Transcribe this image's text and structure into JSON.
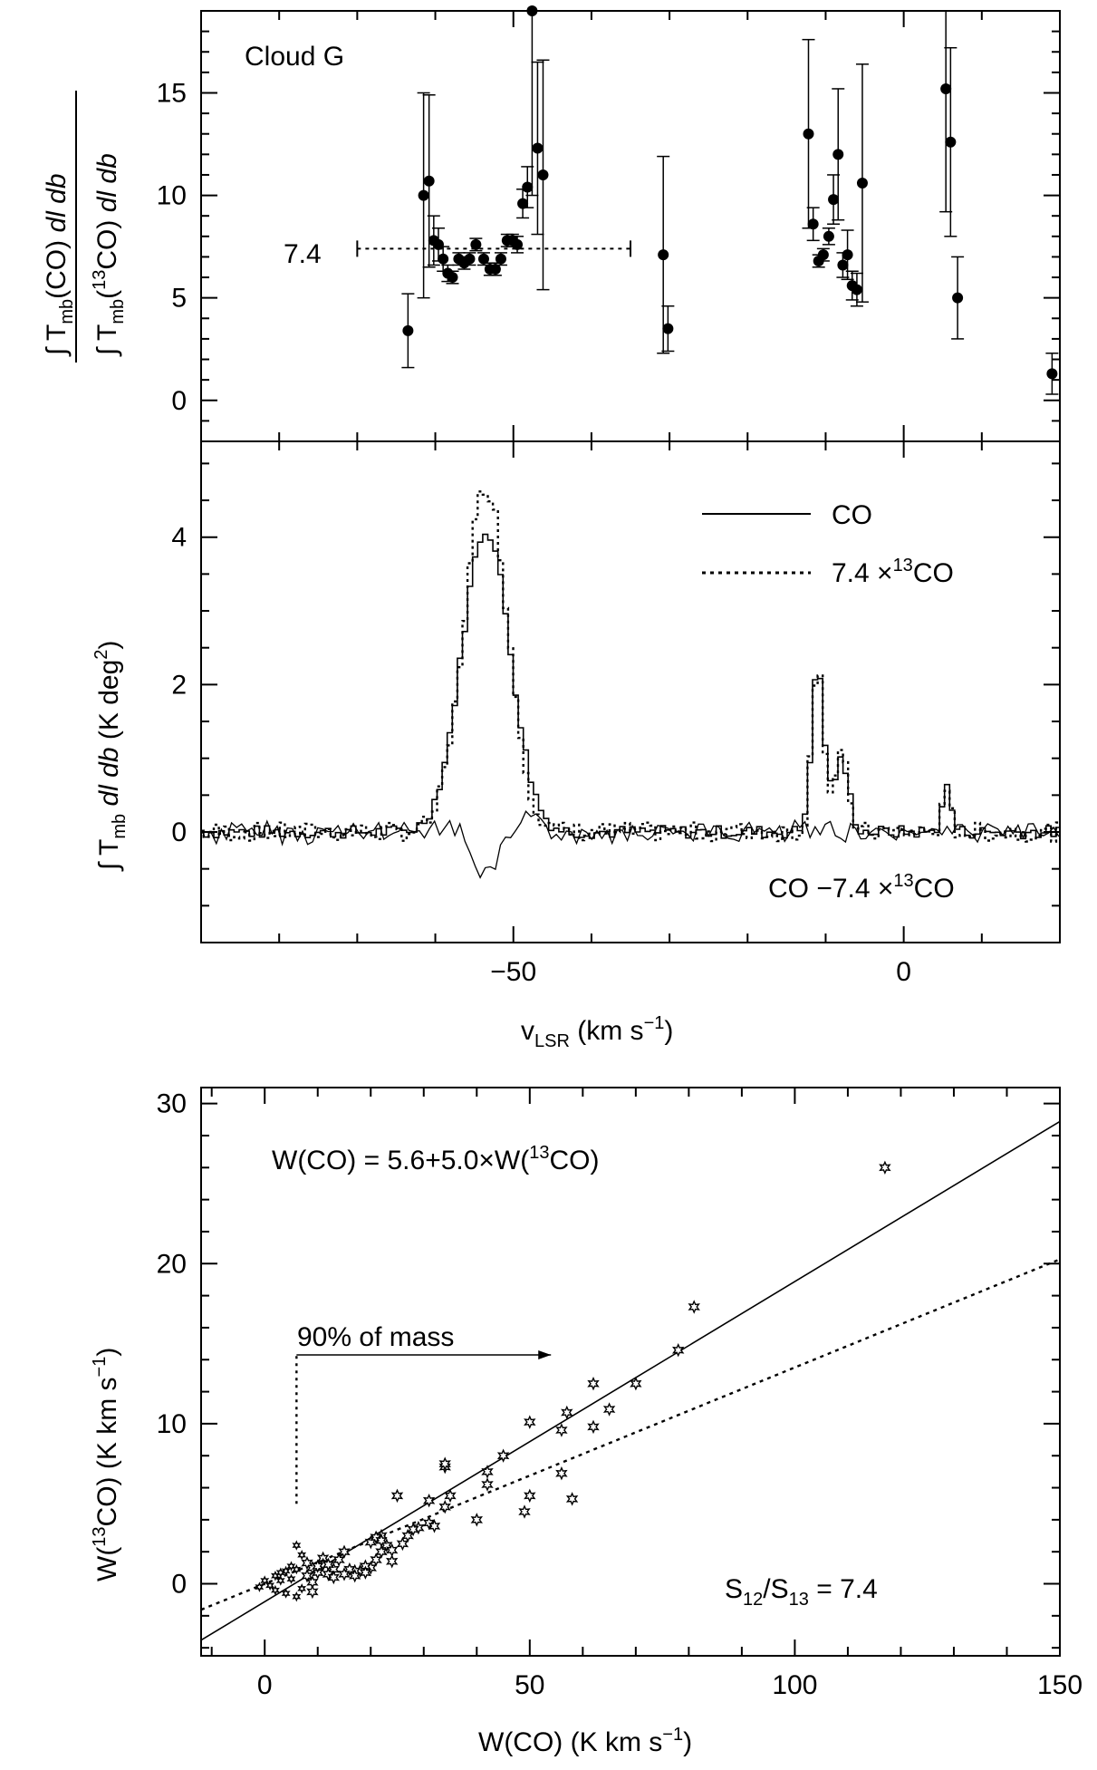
{
  "chart_data": [
    {
      "type": "scatter",
      "panel": "top",
      "title": "Cloud G",
      "xlabel": "",
      "ylabel": "∫ Tmb(CO) dl db / ∫ Tmb(13CO) dl db",
      "xlim": [
        -90,
        20
      ],
      "ylim": [
        -2,
        19
      ],
      "yticks": [
        0,
        5,
        10,
        15
      ],
      "mean_line": {
        "label": "7.4",
        "value": 7.4,
        "x_from": -70,
        "x_to": -35
      },
      "points": [
        {
          "x": -63.5,
          "y": 3.4,
          "err": 1.8
        },
        {
          "x": -61.5,
          "y": 10.0,
          "err": 5.0
        },
        {
          "x": -60.8,
          "y": 10.7,
          "err": 4.2
        },
        {
          "x": -60.2,
          "y": 7.8,
          "err": 1.2
        },
        {
          "x": -59.6,
          "y": 7.6,
          "err": 0.8
        },
        {
          "x": -59.0,
          "y": 6.9,
          "err": 0.6
        },
        {
          "x": -58.4,
          "y": 6.2,
          "err": 0.4
        },
        {
          "x": -57.8,
          "y": 6.0,
          "err": 0.3
        },
        {
          "x": -57.0,
          "y": 6.9,
          "err": 0.3
        },
        {
          "x": -56.3,
          "y": 6.7,
          "err": 0.3
        },
        {
          "x": -55.6,
          "y": 6.9,
          "err": 0.3
        },
        {
          "x": -54.8,
          "y": 7.6,
          "err": 0.3
        },
        {
          "x": -53.8,
          "y": 6.9,
          "err": 0.3
        },
        {
          "x": -53.0,
          "y": 6.4,
          "err": 0.3
        },
        {
          "x": -52.3,
          "y": 6.4,
          "err": 0.3
        },
        {
          "x": -51.6,
          "y": 6.9,
          "err": 0.3
        },
        {
          "x": -50.8,
          "y": 7.8,
          "err": 0.3
        },
        {
          "x": -50.1,
          "y": 7.8,
          "err": 0.3
        },
        {
          "x": -49.5,
          "y": 7.6,
          "err": 0.4
        },
        {
          "x": -48.8,
          "y": 9.6,
          "err": 0.7
        },
        {
          "x": -48.2,
          "y": 10.4,
          "err": 1.0
        },
        {
          "x": -47.6,
          "y": 19.0,
          "err": 9.0
        },
        {
          "x": -46.9,
          "y": 12.3,
          "err": 4.2
        },
        {
          "x": -46.2,
          "y": 11.0,
          "err": 5.6
        },
        {
          "x": -30.8,
          "y": 7.1,
          "err": 4.8
        },
        {
          "x": -30.2,
          "y": 3.5,
          "err": 1.1
        },
        {
          "x": -12.2,
          "y": 13.0,
          "err": 4.6
        },
        {
          "x": -11.6,
          "y": 8.6,
          "err": 0.8
        },
        {
          "x": -10.9,
          "y": 6.8,
          "err": 0.3
        },
        {
          "x": -10.3,
          "y": 7.1,
          "err": 0.3
        },
        {
          "x": -9.6,
          "y": 8.0,
          "err": 0.4
        },
        {
          "x": -9.0,
          "y": 9.8,
          "err": 1.2
        },
        {
          "x": -8.4,
          "y": 12.0,
          "err": 3.2
        },
        {
          "x": -7.8,
          "y": 6.6,
          "err": 0.6
        },
        {
          "x": -7.2,
          "y": 7.1,
          "err": 1.2
        },
        {
          "x": -6.6,
          "y": 5.6,
          "err": 0.7
        },
        {
          "x": -6.0,
          "y": 5.4,
          "err": 0.8
        },
        {
          "x": -5.3,
          "y": 10.6,
          "err": 5.8
        },
        {
          "x": 5.4,
          "y": 15.2,
          "err": 6.0
        },
        {
          "x": 6.0,
          "y": 12.6,
          "err": 4.6
        },
        {
          "x": 6.9,
          "y": 5.0,
          "err": 2.0
        },
        {
          "x": 19.0,
          "y": 1.3,
          "err": 1.0
        }
      ]
    },
    {
      "type": "line",
      "panel": "middle",
      "xlabel": "vLSR (km s-1)",
      "ylabel": "∫ Tmb dl db (K deg2)",
      "xlim": [
        -90,
        20
      ],
      "ylim": [
        -1.5,
        5.3
      ],
      "xticks": [
        -50,
        0
      ],
      "yticks": [
        0,
        2,
        4
      ],
      "legend": [
        {
          "label": "CO",
          "style": "solid"
        },
        {
          "label": "7.4 ×13CO",
          "style": "dotted"
        }
      ],
      "annotation": "CO −7.4 ×13CO",
      "series": [
        {
          "name": "CO",
          "style": "solid",
          "shape": "gaussian-sum",
          "components": [
            {
              "center": -53.5,
              "amp": 4.1,
              "sigma": 3.1
            },
            {
              "center": -11.0,
              "amp": 2.2,
              "sigma": 0.8
            },
            {
              "center": -8.0,
              "amp": 0.95,
              "sigma": 1.0
            },
            {
              "center": 5.5,
              "amp": 0.6,
              "sigma": 0.6
            }
          ]
        },
        {
          "name": "7.4 ×13CO",
          "style": "dotted",
          "shape": "gaussian-sum",
          "components": [
            {
              "center": -53.5,
              "amp": 4.7,
              "sigma": 2.8
            },
            {
              "center": -11.0,
              "amp": 2.35,
              "sigma": 0.75
            },
            {
              "center": -8.0,
              "amp": 1.0,
              "sigma": 0.9
            },
            {
              "center": 5.5,
              "amp": 0.45,
              "sigma": 0.6
            }
          ]
        },
        {
          "name": "CO −7.4 ×13CO",
          "style": "solid-thin",
          "shape": "residual"
        }
      ]
    },
    {
      "type": "scatter",
      "panel": "bottom",
      "xlabel": "W(CO) (K km s-1)",
      "ylabel": "W(13CO) (K km s-1)",
      "xlim": [
        -12,
        150
      ],
      "ylim": [
        -4.5,
        31
      ],
      "xticks": [
        0,
        50,
        100,
        150
      ],
      "yticks": [
        0,
        10,
        20,
        30
      ],
      "fit_label": "W(CO) = 5.6+5.0×W(13CO)",
      "fit": {
        "intercept": 5.6,
        "slope": 5.0
      },
      "ratio_label": "S12/S13 = 7.4",
      "ratio": 7.4,
      "mass_label": "90% of mass",
      "mass_threshold_x": 6,
      "points": [
        [
          117,
          26
        ],
        [
          81,
          17.3
        ],
        [
          78,
          14.6
        ],
        [
          70,
          12.5
        ],
        [
          62,
          12.5
        ],
        [
          65,
          10.9
        ],
        [
          57,
          10.7
        ],
        [
          62,
          9.8
        ],
        [
          56,
          9.6
        ],
        [
          50,
          10.1
        ],
        [
          58,
          5.3
        ],
        [
          56,
          6.9
        ],
        [
          50,
          5.5
        ],
        [
          49,
          4.5
        ],
        [
          45,
          8.0
        ],
        [
          42,
          6.2
        ],
        [
          42,
          7.0
        ],
        [
          40,
          4.0
        ],
        [
          35,
          5.5
        ],
        [
          34,
          7.3
        ],
        [
          34,
          7.5
        ],
        [
          34,
          4.8
        ],
        [
          31,
          5.2
        ],
        [
          31,
          3.8
        ],
        [
          32,
          3.6
        ],
        [
          29,
          3.5
        ],
        [
          25,
          5.5
        ],
        [
          26,
          2.5
        ],
        [
          24,
          1.4
        ],
        [
          23,
          2.4
        ],
        [
          22,
          3.0
        ],
        [
          22,
          2.0
        ],
        [
          21,
          1.5
        ],
        [
          20,
          2.6
        ],
        [
          20,
          1.0
        ],
        [
          19,
          1.1
        ],
        [
          18,
          0.8
        ],
        [
          17,
          0.8
        ],
        [
          16,
          0.9
        ],
        [
          15,
          2.0
        ],
        [
          14,
          1.5
        ],
        [
          13,
          0.9
        ],
        [
          12,
          0.6
        ],
        [
          11,
          1.6
        ],
        [
          10,
          0.7
        ],
        [
          9,
          1.0
        ],
        [
          8,
          0.5
        ],
        [
          7,
          1.8
        ],
        [
          6,
          2.4
        ],
        [
          5,
          0.3
        ],
        [
          4,
          0.8
        ],
        [
          3,
          0.2
        ],
        [
          2,
          0.5
        ],
        [
          1,
          -0.1
        ],
        [
          0,
          0.2
        ],
        [
          -1,
          -0.2
        ],
        [
          4,
          -0.6
        ],
        [
          7,
          -0.3
        ],
        [
          9,
          0.1
        ],
        [
          11,
          1.2
        ],
        [
          13,
          0.4
        ],
        [
          15,
          0.6
        ],
        [
          17,
          0.5
        ],
        [
          19,
          0.7
        ],
        [
          21,
          2.9
        ],
        [
          22,
          2.7
        ],
        [
          24,
          2.1
        ],
        [
          27,
          3.0
        ],
        [
          28,
          3.4
        ],
        [
          5,
          1.1
        ],
        [
          6,
          0.9
        ],
        [
          8,
          1.3
        ],
        [
          10,
          1.1
        ],
        [
          12,
          1.2
        ],
        [
          3,
          0.7
        ],
        [
          2,
          -0.4
        ],
        [
          6,
          -0.8
        ],
        [
          9,
          -0.5
        ]
      ]
    }
  ]
}
